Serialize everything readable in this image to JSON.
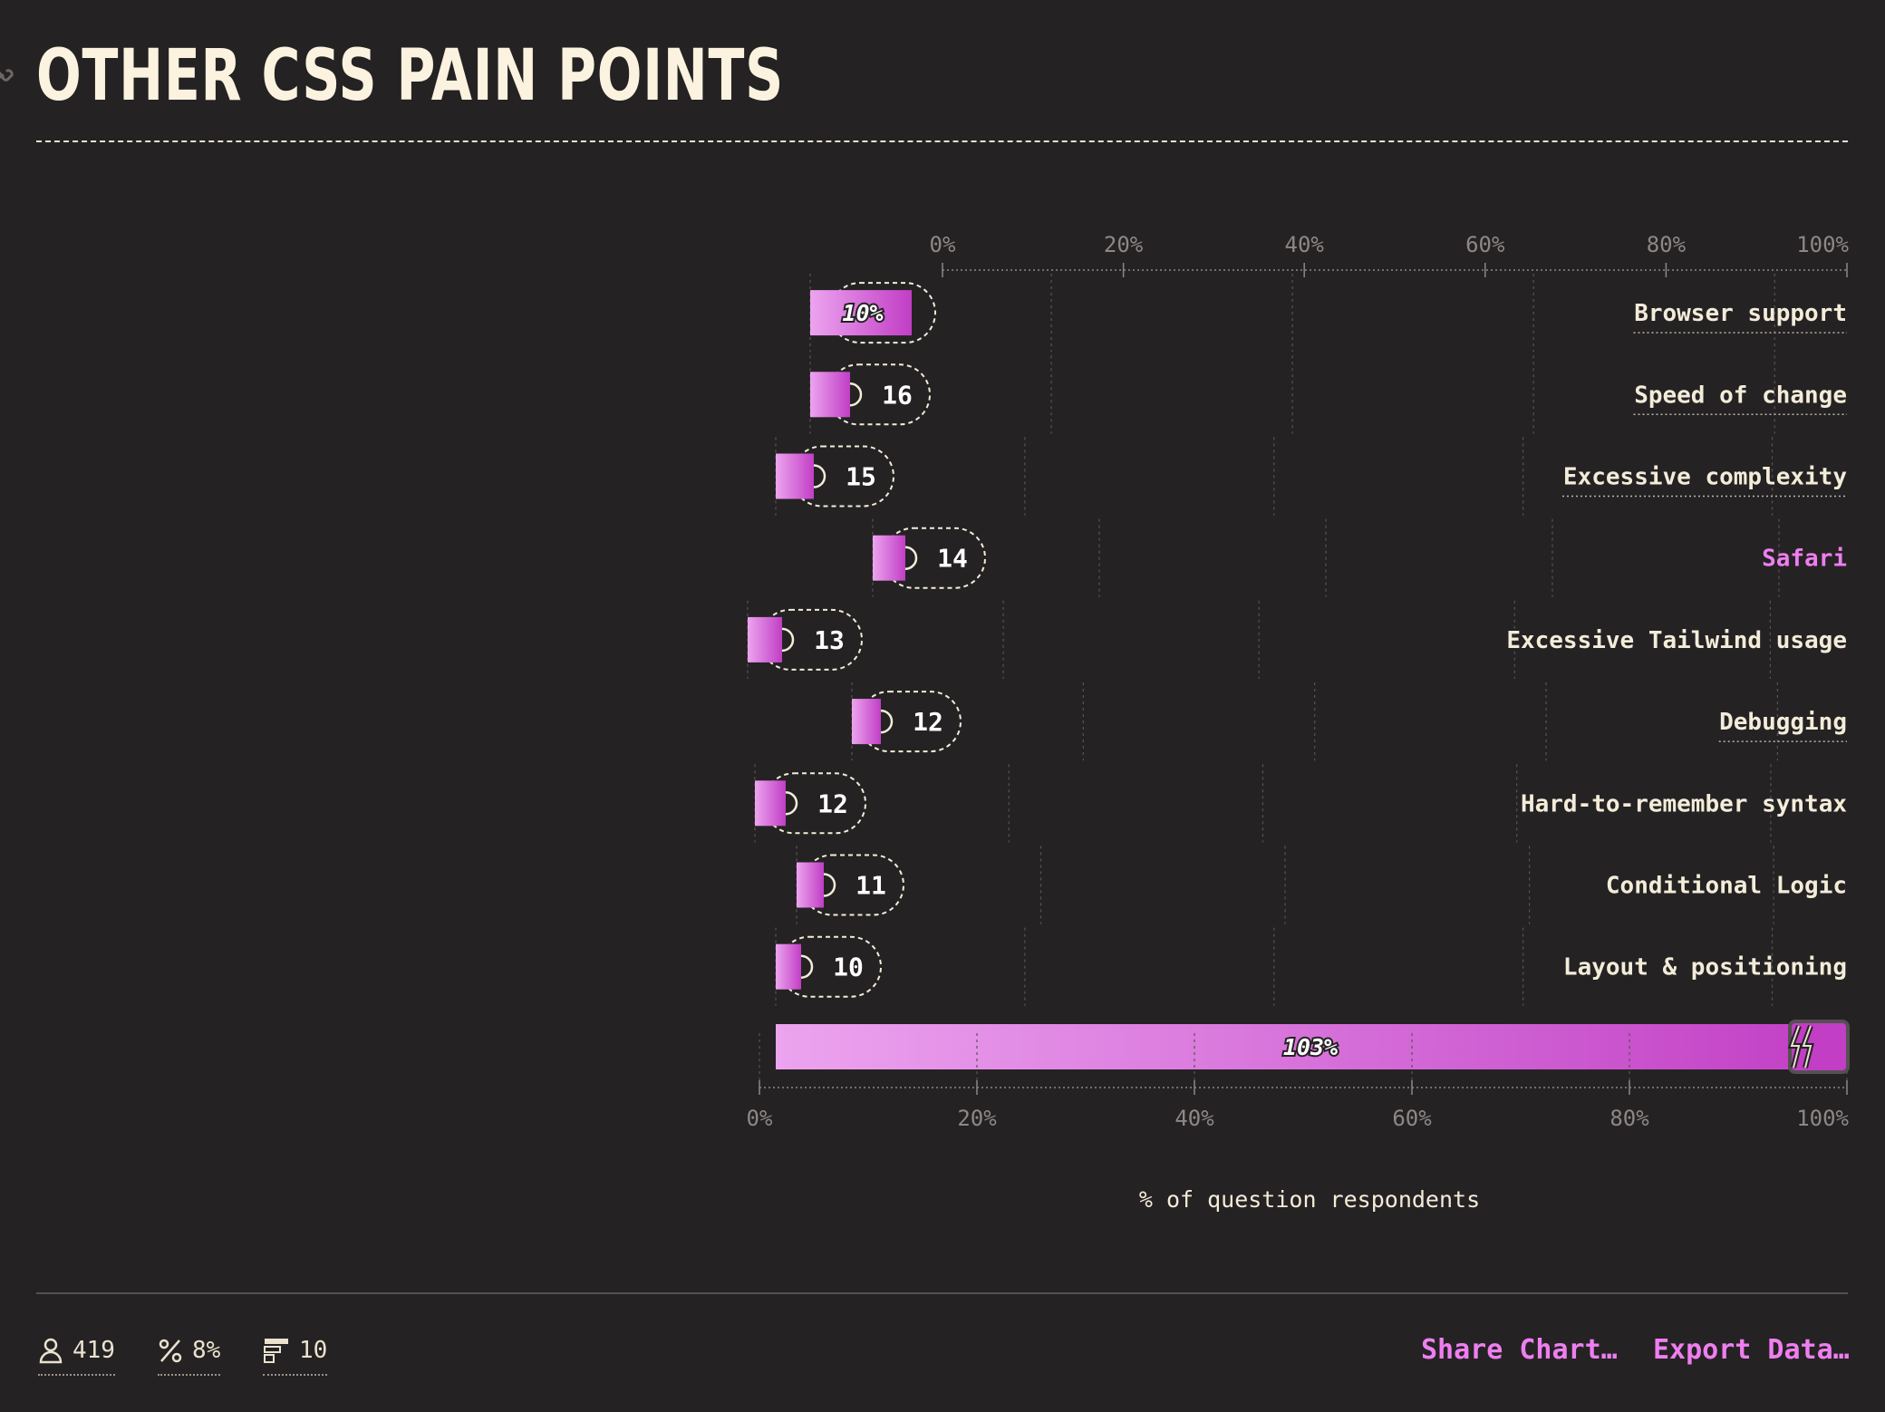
{
  "header": {
    "title": "OTHER CSS PAIN POINTS"
  },
  "chart_data": {
    "type": "bar",
    "orientation": "horizontal",
    "x_unit": "%",
    "xlabel": "% of question respondents",
    "xlim": [
      0,
      100
    ],
    "ticks": [
      "0%",
      "20%",
      "40%",
      "60%",
      "80%",
      "100%"
    ],
    "categories": [
      "Browser support",
      "Speed of change",
      "Excessive complexity",
      "Safari",
      "Excessive Tailwind usage",
      "Debugging",
      "Hard-to-remember syntax",
      "Conditional Logic",
      "Layout & positioning"
    ],
    "highlighted_category": "Safari",
    "counts": [
      null,
      16,
      15,
      14,
      13,
      12,
      12,
      11,
      10
    ],
    "values_percent": [
      10,
      4,
      4,
      3.5,
      3,
      3,
      3,
      2.5,
      2.5
    ],
    "first_bar_label": "10%",
    "total_bar": {
      "value_percent": 103,
      "label": "103%"
    },
    "colors": {
      "bar_light": "#eca4ef",
      "bar_dark": "#c13ec5",
      "highlight": "#ee7ff0",
      "text": "#f3ecd9",
      "axis": "#8e8884"
    }
  },
  "footer": {
    "respondents": "419",
    "percent": "8%",
    "count": "10",
    "share_label": "Share Chart…",
    "export_label": "Export Data…"
  }
}
